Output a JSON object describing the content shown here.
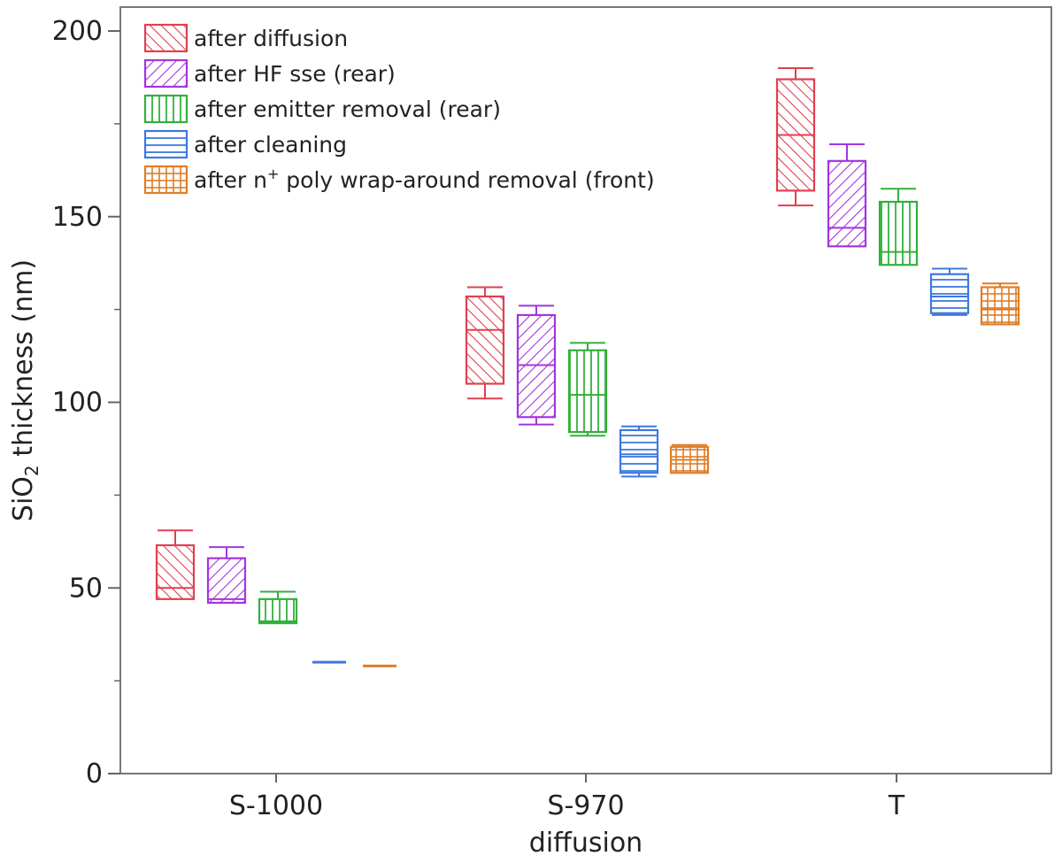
{
  "chart_data": {
    "type": "box",
    "ylabel_main": "SiO",
    "ylabel_sub": "2",
    "ylabel_tail": " thickness (nm)",
    "xlabel": "diffusion",
    "ylim": [
      0,
      200
    ],
    "yticks_major": [
      0,
      50,
      100,
      150,
      200
    ],
    "yticks_minor": [
      25,
      75,
      125,
      175
    ],
    "categories": [
      "S-1000",
      "S-970",
      "T"
    ],
    "legend_position": "top-left",
    "series": [
      {
        "name": "after diffusion",
        "color": "#e0404f",
        "pattern": "hatch-backslash",
        "boxes": [
          {
            "whisker_low": 47,
            "q1": 47,
            "median": 50,
            "q3": 61.5,
            "whisker_high": 65.5
          },
          {
            "whisker_low": 101,
            "q1": 105,
            "median": 119.5,
            "q3": 128.5,
            "whisker_high": 131
          },
          {
            "whisker_low": 153,
            "q1": 157,
            "median": 172,
            "q3": 187,
            "whisker_high": 190
          }
        ]
      },
      {
        "name": "after HF sse (rear)",
        "color": "#a335e0",
        "pattern": "hatch-slash",
        "boxes": [
          {
            "whisker_low": 46,
            "q1": 46,
            "median": 47,
            "q3": 58,
            "whisker_high": 61
          },
          {
            "whisker_low": 94,
            "q1": 96,
            "median": 110,
            "q3": 123.5,
            "whisker_high": 126
          },
          {
            "whisker_low": 142,
            "q1": 142,
            "median": 147,
            "q3": 165,
            "whisker_high": 169.5
          }
        ]
      },
      {
        "name": "after emitter removal (rear)",
        "color": "#33b03c",
        "pattern": "vertical",
        "boxes": [
          {
            "whisker_low": 40.5,
            "q1": 40.5,
            "median": 41,
            "q3": 47,
            "whisker_high": 49
          },
          {
            "whisker_low": 91,
            "q1": 92,
            "median": 102,
            "q3": 114,
            "whisker_high": 116
          },
          {
            "whisker_low": 137,
            "q1": 137,
            "median": 140.5,
            "q3": 154,
            "whisker_high": 157.5
          }
        ]
      },
      {
        "name": "after cleaning",
        "color": "#3d78e0",
        "pattern": "horizontal",
        "boxes": [
          {
            "whisker_low": 30,
            "q1": 30,
            "median": 30,
            "q3": 30,
            "whisker_high": 30
          },
          {
            "whisker_low": 80,
            "q1": 81,
            "median": 86,
            "q3": 92.5,
            "whisker_high": 93.5
          },
          {
            "whisker_low": 123.5,
            "q1": 124,
            "median": 128.5,
            "q3": 134.5,
            "whisker_high": 136
          }
        ]
      },
      {
        "name_main": "after n",
        "name_sup": "+",
        "name_tail": " poly wrap-around removal (front)",
        "color": "#de7d28",
        "pattern": "grid",
        "boxes": [
          {
            "whisker_low": 29,
            "q1": 29,
            "median": 29,
            "q3": 29,
            "whisker_high": 29
          },
          {
            "whisker_low": 81,
            "q1": 81,
            "median": 84.5,
            "q3": 88,
            "whisker_high": 88.5
          },
          {
            "whisker_low": 121,
            "q1": 121,
            "median": 125,
            "q3": 131,
            "whisker_high": 132
          }
        ]
      }
    ]
  }
}
